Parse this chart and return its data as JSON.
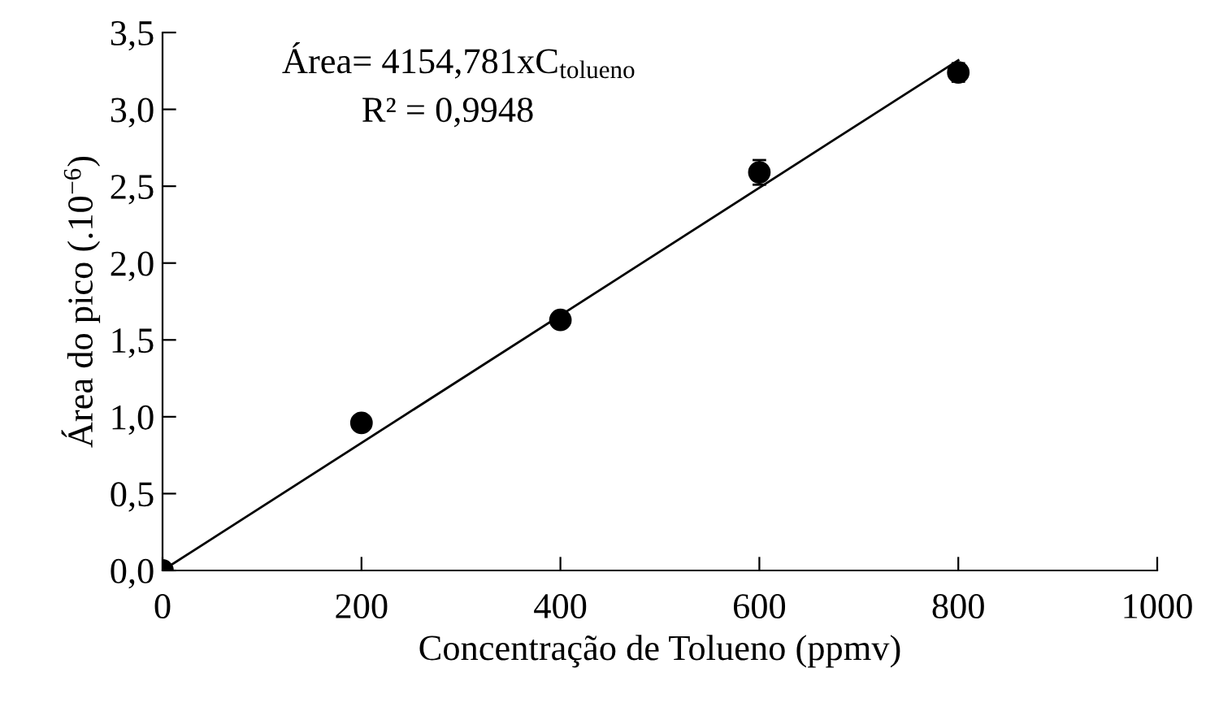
{
  "chart_data": {
    "type": "scatter",
    "xlabel": "Concentração de Tolueno (ppmv)",
    "ylabel": "Área do pico (.10$^{−6}$)",
    "x": [
      0,
      200,
      400,
      600,
      800
    ],
    "series": [
      {
        "color": "#000000",
        "values": [
          0,
          0.96,
          1.63,
          2.59,
          3.24
        ],
        "errors": [
          0.02,
          0.03,
          0.03,
          0.08,
          0.06
        ],
        "marker": "circle"
      },
      {
        "type": "line",
        "color": "#000000",
        "x": [
          0,
          800
        ],
        "values": [
          0,
          3.32
        ],
        "marker": "none",
        "line_style": "solid"
      }
    ],
    "annotations": [
      "Área= 4154,781xC$_{tolueno}$",
      "R² = 0,9948"
    ],
    "xlim": [
      0,
      1000
    ],
    "xticks": [
      0,
      200,
      400,
      600,
      800,
      1000
    ],
    "ylim": [
      0,
      3.5
    ],
    "yticks": [
      {
        "value": 0,
        "label": "0,0"
      },
      {
        "value": 0.5,
        "label": "0,5"
      },
      {
        "value": 1,
        "label": "1,0"
      },
      {
        "value": 1.5,
        "label": "1,5"
      },
      {
        "value": 2,
        "label": "2,0"
      },
      {
        "value": 2.5,
        "label": "2,5"
      },
      {
        "value": 3,
        "label": "3,0"
      },
      {
        "value": 3.5,
        "label": "3,5"
      }
    ],
    "grid": false,
    "legend": false
  }
}
